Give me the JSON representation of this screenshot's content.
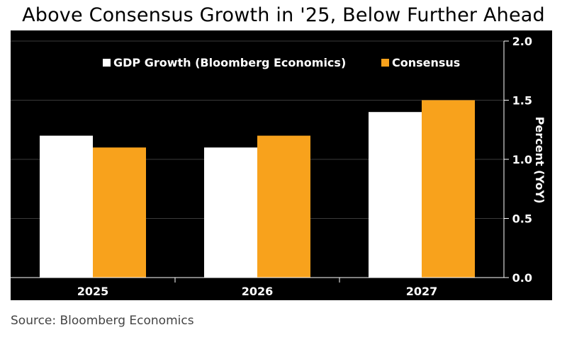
{
  "chart_data": {
    "type": "bar",
    "title": "Above Consensus Growth in '25, Below Further Ahead",
    "categories": [
      "2025",
      "2026",
      "2027"
    ],
    "series": [
      {
        "name": "GDP Growth (Bloomberg Economics)",
        "values": [
          1.2,
          1.1,
          1.4
        ],
        "color": "#ffffff"
      },
      {
        "name": "Consensus",
        "values": [
          1.1,
          1.2,
          1.5
        ],
        "color": "#f8a21c"
      }
    ],
    "xlabel": "",
    "ylabel": "Percent (YoY)",
    "ylim": [
      0,
      2.0
    ],
    "yticks": [
      0.0,
      0.5,
      1.0,
      1.5,
      2.0
    ],
    "ytick_labels": [
      "0.0",
      "0.5",
      "1.0",
      "1.5",
      "2.0"
    ],
    "y_axis_side": "right",
    "grid": true,
    "legend_position": "top-center",
    "background": "#000000",
    "source": "Source: Bloomberg Economics"
  }
}
